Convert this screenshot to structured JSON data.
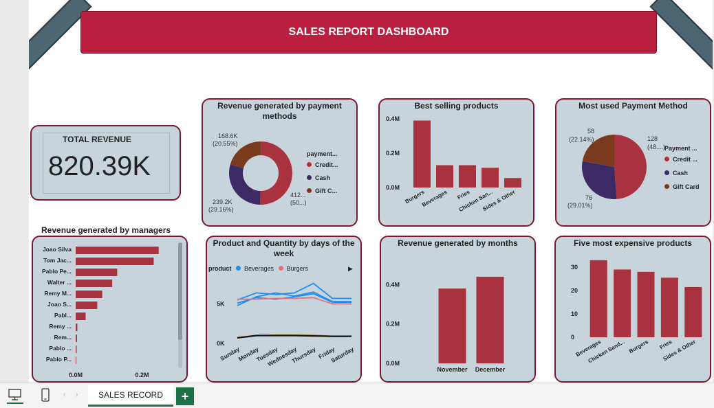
{
  "dashboard": {
    "title": "SALES REPORT DASHBOARD"
  },
  "total_revenue": {
    "label": "TOTAL REVENUE",
    "value": "820.39K"
  },
  "colors": {
    "credit": "#a8323d",
    "cash": "#3b2a63",
    "gift": "#7a3a1e",
    "bar": "#a8323d",
    "beverages": "#1f8ef1",
    "burgers": "#e8717a",
    "accent": "#bb1f3f"
  },
  "payment_revenue": {
    "title": "Revenue generated by payment methods",
    "legend_title": "payment...",
    "legend": [
      "Credit...",
      "Cash",
      "Gift C..."
    ],
    "labels": {
      "gift_value": "168.6K",
      "gift_pct": "(20.55%)",
      "cash_value": "239.2K",
      "cash_pct": "(29.16%)",
      "credit_value": "412...",
      "credit_pct": "(50...)"
    }
  },
  "best_selling": {
    "title": "Best selling products",
    "yticks": [
      "0.4M",
      "0.2M",
      "0.0M"
    ]
  },
  "payment_method": {
    "title": "Most used Payment Method",
    "legend_title": "Payment ...",
    "legend": [
      "Credit ...",
      "Cash",
      "Gift Card"
    ],
    "labels": {
      "gift_value": "58",
      "gift_pct": "(22.14%)",
      "credit_value": "128",
      "credit_pct": "(48....)",
      "cash_value": "76",
      "cash_pct": "(29.01%)"
    }
  },
  "managers": {
    "title": "Revenue generated by managers",
    "xticks": [
      "0.0M",
      "0.2M"
    ]
  },
  "days_chart": {
    "title": "Product and Quantity by days of the week",
    "legend_label": "product",
    "legend": [
      "Beverages",
      "Burgers"
    ],
    "yticks": [
      "5K",
      "0K"
    ]
  },
  "months": {
    "title": "Revenue generated by months",
    "yticks": [
      "0.4M",
      "0.2M",
      "0.0M"
    ]
  },
  "expensive": {
    "title": "Five most expensive products",
    "yticks": [
      "30",
      "20",
      "10",
      "0"
    ]
  },
  "bottom": {
    "tab_label": "SALES RECORD",
    "add_label": "+"
  },
  "chart_data": [
    {
      "type": "pie",
      "title": "Revenue generated by payment methods",
      "categories": [
        "Credit Card",
        "Cash",
        "Gift Card"
      ],
      "values": [
        412.6,
        239.2,
        168.6
      ],
      "percent": [
        50.29,
        29.16,
        20.55
      ],
      "donut": true
    },
    {
      "type": "bar",
      "title": "Best selling products",
      "categories": [
        "Burgers",
        "Beverages",
        "Fries",
        "Chicken San...",
        "Sides & Other"
      ],
      "values": [
        0.39,
        0.13,
        0.13,
        0.115,
        0.055
      ],
      "ylim": [
        0,
        0.4
      ]
    },
    {
      "type": "pie",
      "title": "Most used Payment Method",
      "categories": [
        "Credit Card",
        "Cash",
        "Gift Card"
      ],
      "values": [
        128,
        76,
        58
      ],
      "percent": [
        48.85,
        29.01,
        22.14
      ]
    },
    {
      "type": "bar",
      "title": "Revenue generated by managers",
      "categories": [
        "Joao Silva",
        "Tom Jac...",
        "Pablo Pe...",
        "Walter ...",
        "Remy M...",
        "Joao S...",
        "Pabl...",
        "Remy ...",
        "Rem...",
        "Pablo ...",
        "Pablo P..."
      ],
      "values": [
        0.25,
        0.235,
        0.125,
        0.11,
        0.08,
        0.065,
        0.03,
        0.005,
        0.004,
        0.003,
        0.002
      ],
      "xlim": [
        0,
        0.29
      ]
    },
    {
      "type": "line",
      "title": "Product and Quantity by days of the week",
      "x": [
        "Sunday",
        "Monday",
        "Tuesday",
        "Wednesday",
        "Thursday",
        "Friday",
        "Saturday"
      ],
      "series": [
        {
          "name": "Beverages",
          "values": [
            5500,
            6400,
            6200,
            6400,
            7600,
            5700,
            5700
          ]
        },
        {
          "name": "Beverages",
          "values": [
            4800,
            5900,
            6400,
            6000,
            6500,
            5300,
            5300
          ]
        },
        {
          "name": "Beverages",
          "values": [
            5100,
            5800,
            5600,
            5900,
            6300,
            5200,
            5200
          ]
        },
        {
          "name": "Burgers",
          "values": [
            5600,
            5600,
            5700,
            5700,
            5800,
            5000,
            5000
          ]
        },
        {
          "values": [
            800,
            1000,
            1100,
            1100,
            1100,
            900,
            900
          ]
        },
        {
          "values": [
            700,
            1000,
            1000,
            1000,
            950,
            900,
            900
          ]
        }
      ],
      "ylim": [
        0,
        8000
      ]
    },
    {
      "type": "bar",
      "title": "Revenue generated by months",
      "categories": [
        "November",
        "December"
      ],
      "values": [
        0.38,
        0.44
      ],
      "ylim": [
        0,
        0.45
      ]
    },
    {
      "type": "bar",
      "title": "Five most expensive products",
      "categories": [
        "Beverages",
        "Chicken Sand...",
        "Burgers",
        "Fries",
        "Sides & Other"
      ],
      "values": [
        33,
        29,
        28,
        25.5,
        21.5
      ],
      "ylim": [
        0,
        35
      ]
    }
  ]
}
